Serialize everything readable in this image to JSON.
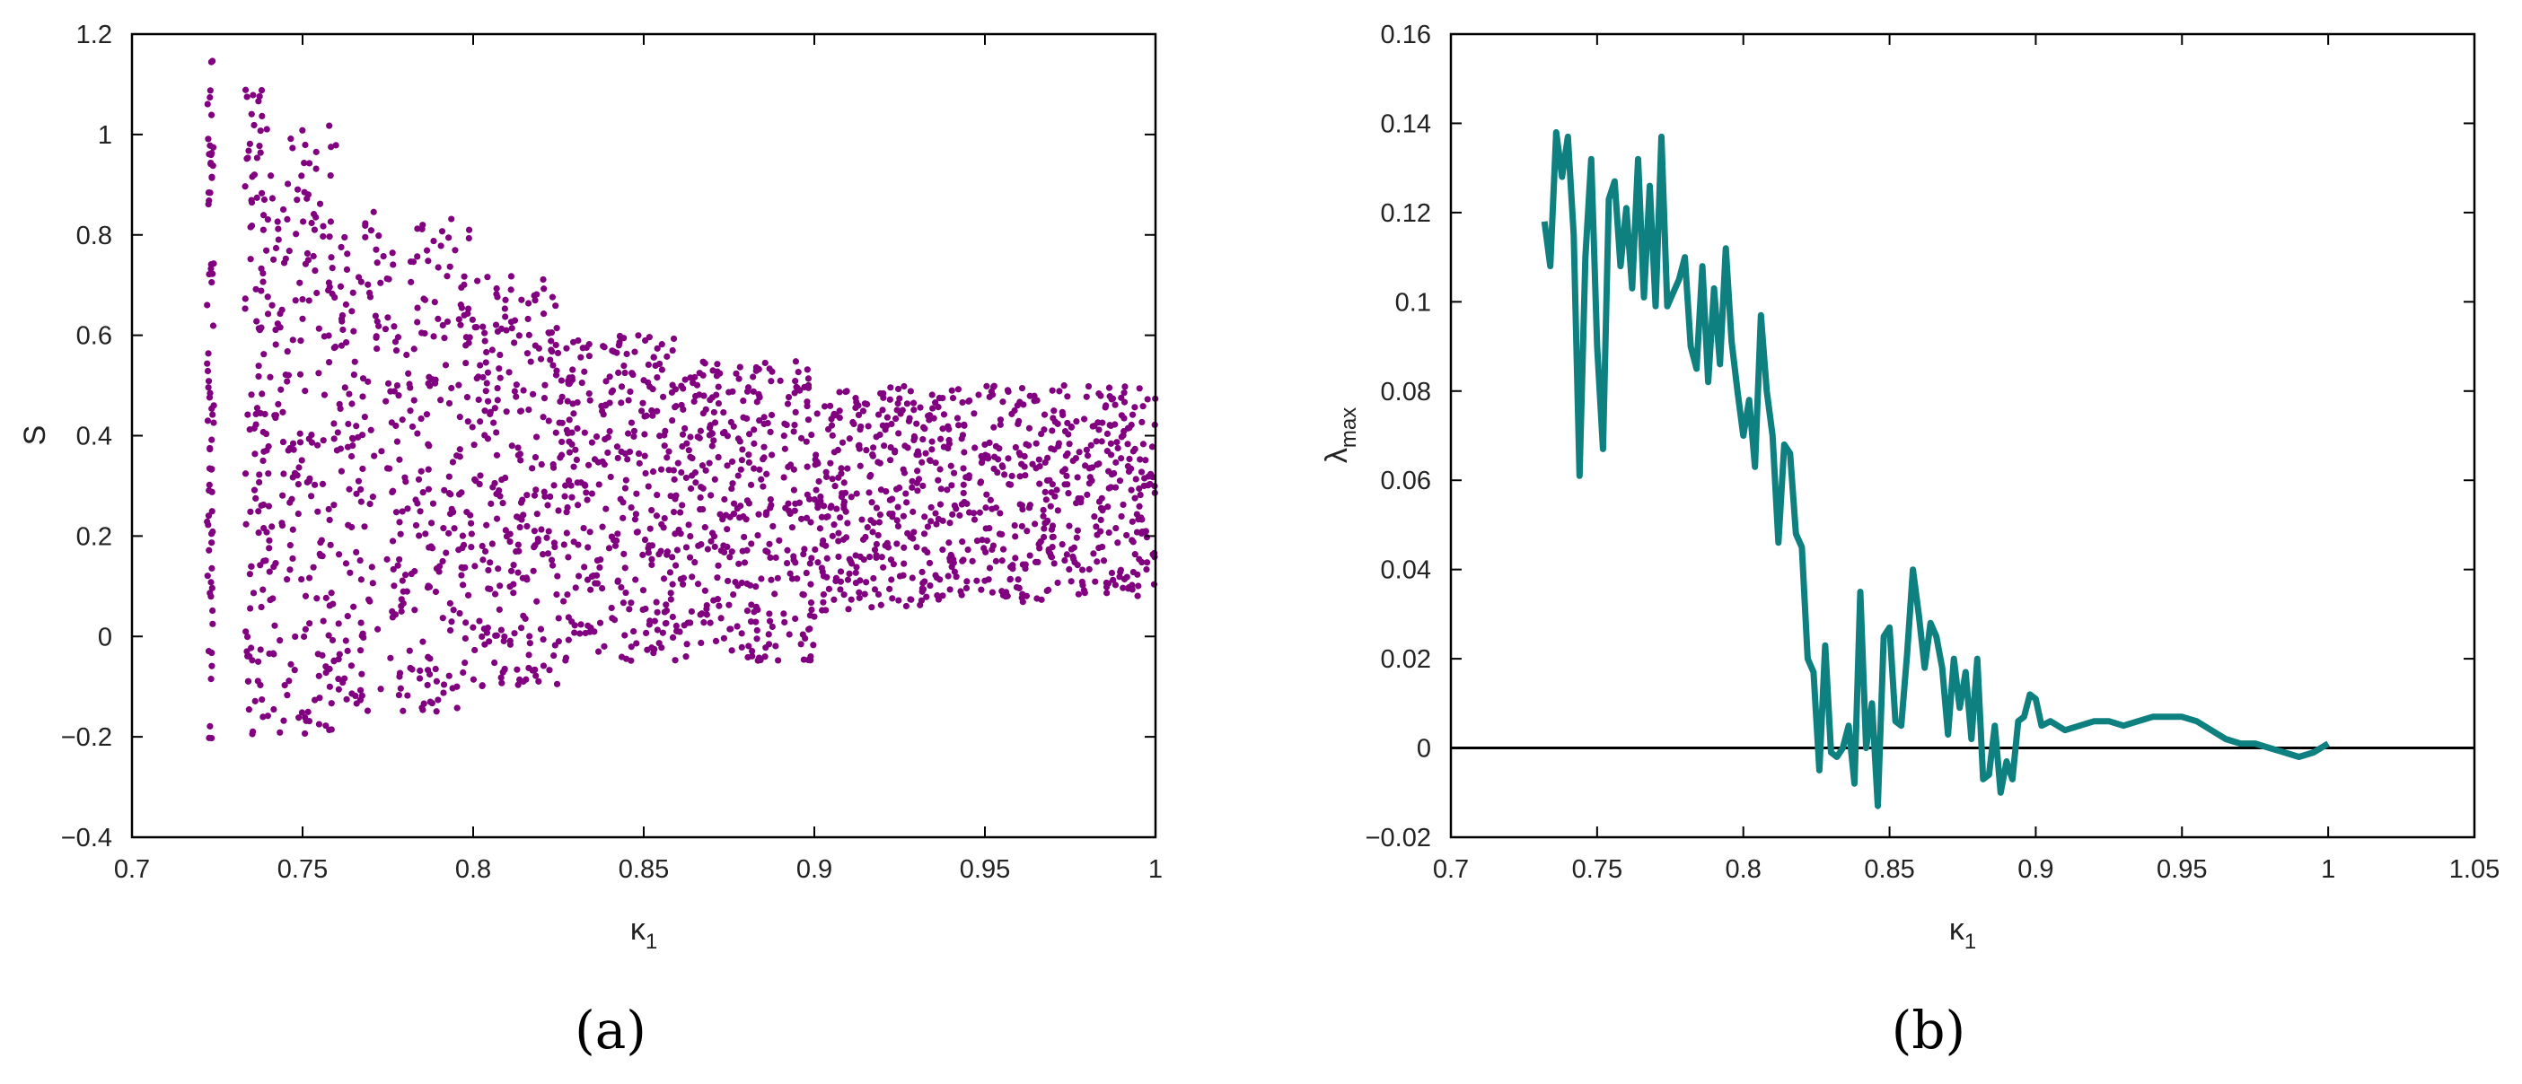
{
  "chart_data": [
    {
      "type": "scatter",
      "panel_label": "(a)",
      "xlabel": "κ",
      "xlabel_subscript": "1",
      "ylabel": "S",
      "xlim": [
        0.7,
        1.0
      ],
      "ylim": [
        -0.4,
        1.2
      ],
      "xticks": [
        "0.7",
        "0.75",
        "0.8",
        "0.85",
        "0.9",
        "0.95",
        "1"
      ],
      "yticks": [
        "-0.4",
        "-0.2",
        "0",
        "0.2",
        "0.4",
        "0.6",
        "0.8",
        "1",
        "1.2"
      ],
      "marker_color": "#800080",
      "grid": false,
      "series": [
        {
          "description": "bifurcation points",
          "bands": [
            {
              "x_range": [
                0.722,
                0.724
              ],
              "y_range": [
                -0.21,
                1.15
              ]
            },
            {
              "x_range": [
                0.733,
                0.74
              ],
              "y_range": [
                -0.2,
                1.1
              ]
            },
            {
              "x_range": [
                0.74,
                0.76
              ],
              "y_range": [
                -0.2,
                1.02
              ]
            },
            {
              "x_range": [
                0.76,
                0.8
              ],
              "y_range": [
                -0.15,
                0.85
              ]
            },
            {
              "x_range": [
                0.8,
                0.825
              ],
              "y_range": [
                -0.1,
                0.72
              ]
            },
            {
              "x_range": [
                0.825,
                0.86
              ],
              "y_range": [
                -0.05,
                0.6
              ]
            },
            {
              "x_range": [
                0.86,
                0.9
              ],
              "y_range": [
                -0.05,
                0.55
              ]
            },
            {
              "x_range": [
                0.9,
                1.0
              ],
              "y_range": [
                0.05,
                0.5
              ]
            }
          ]
        }
      ]
    },
    {
      "type": "line",
      "panel_label": "(b)",
      "xlabel": "κ",
      "xlabel_subscript": "1",
      "ylabel": "λ",
      "ylabel_subscript": "max",
      "xlim": [
        0.7,
        1.05
      ],
      "ylim": [
        -0.02,
        0.16
      ],
      "xticks": [
        "0.7",
        "0.75",
        "0.8",
        "0.85",
        "0.9",
        "0.95",
        "1",
        "1.05"
      ],
      "yticks": [
        "-0.02",
        "0",
        "0.02",
        "0.04",
        "0.06",
        "0.08",
        "0.1",
        "0.12",
        "0.14",
        "0.16"
      ],
      "line_color": "#0e8080",
      "zero_line_color": "#000000",
      "grid": false,
      "series": [
        {
          "x": [
            0.732,
            0.734,
            0.736,
            0.738,
            0.74,
            0.742,
            0.744,
            0.746,
            0.748,
            0.75,
            0.752,
            0.754,
            0.756,
            0.758,
            0.76,
            0.762,
            0.764,
            0.766,
            0.768,
            0.77,
            0.772,
            0.774,
            0.776,
            0.778,
            0.78,
            0.782,
            0.784,
            0.786,
            0.788,
            0.79,
            0.792,
            0.794,
            0.796,
            0.798,
            0.8,
            0.802,
            0.804,
            0.806,
            0.808,
            0.81,
            0.812,
            0.814,
            0.816,
            0.818,
            0.82,
            0.822,
            0.824,
            0.826,
            0.828,
            0.83,
            0.832,
            0.834,
            0.836,
            0.838,
            0.84,
            0.842,
            0.844,
            0.846,
            0.848,
            0.85,
            0.852,
            0.854,
            0.856,
            0.858,
            0.86,
            0.862,
            0.864,
            0.866,
            0.868,
            0.87,
            0.872,
            0.874,
            0.876,
            0.878,
            0.88,
            0.882,
            0.884,
            0.886,
            0.888,
            0.89,
            0.892,
            0.894,
            0.896,
            0.898,
            0.9,
            0.902,
            0.905,
            0.91,
            0.915,
            0.92,
            0.925,
            0.93,
            0.935,
            0.94,
            0.945,
            0.95,
            0.955,
            0.96,
            0.965,
            0.97,
            0.975,
            0.98,
            0.985,
            0.99,
            0.995,
            1.0
          ],
          "y": [
            0.118,
            0.108,
            0.138,
            0.128,
            0.137,
            0.115,
            0.061,
            0.11,
            0.132,
            0.09,
            0.067,
            0.123,
            0.127,
            0.108,
            0.121,
            0.103,
            0.132,
            0.101,
            0.126,
            0.099,
            0.137,
            0.099,
            0.102,
            0.105,
            0.11,
            0.09,
            0.085,
            0.108,
            0.082,
            0.103,
            0.086,
            0.112,
            0.091,
            0.08,
            0.07,
            0.078,
            0.063,
            0.097,
            0.08,
            0.07,
            0.046,
            0.068,
            0.066,
            0.048,
            0.045,
            0.02,
            0.017,
            -0.005,
            0.023,
            -0.001,
            -0.002,
            0.0,
            0.005,
            -0.008,
            0.035,
            0.0,
            0.01,
            -0.013,
            0.025,
            0.027,
            0.006,
            0.005,
            0.021,
            0.04,
            0.03,
            0.018,
            0.028,
            0.025,
            0.018,
            0.003,
            0.02,
            0.009,
            0.017,
            0.002,
            0.02,
            -0.007,
            -0.006,
            0.005,
            -0.01,
            -0.003,
            -0.007,
            0.006,
            0.007,
            0.012,
            0.011,
            0.005,
            0.006,
            0.004,
            0.005,
            0.006,
            0.006,
            0.005,
            0.006,
            0.007,
            0.007,
            0.007,
            0.006,
            0.004,
            0.002,
            0.001,
            0.001,
            0.0,
            -0.001,
            -0.002,
            -0.001,
            0.001
          ]
        }
      ]
    }
  ]
}
